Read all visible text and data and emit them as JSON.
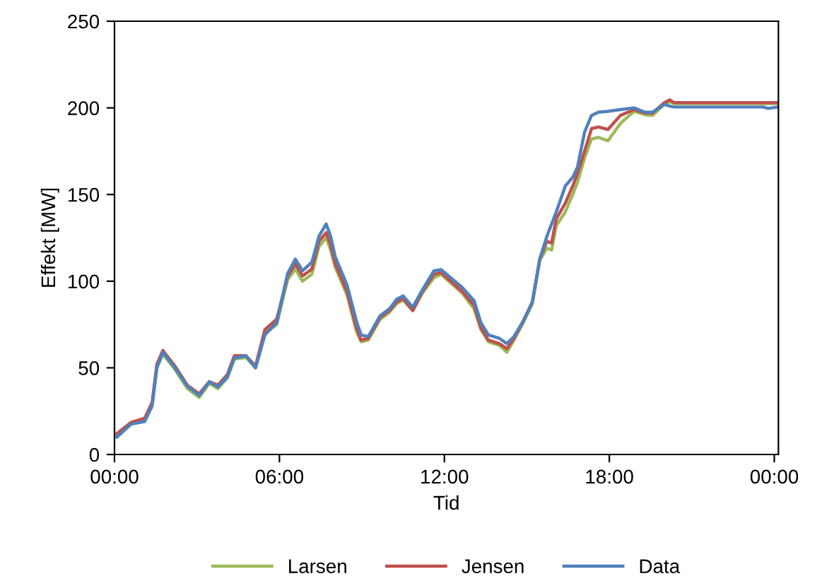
{
  "chart_data": {
    "type": "line",
    "xlabel": "Tid",
    "ylabel": "Effekt [MW]",
    "x": [
      0.09,
      0.6,
      1.1,
      1.37,
      1.54,
      1.76,
      2.2,
      2.65,
      3.08,
      3.45,
      3.76,
      4.1,
      4.36,
      4.78,
      5.13,
      5.47,
      5.9,
      6.3,
      6.58,
      6.84,
      7.18,
      7.44,
      7.7,
      7.86,
      8.03,
      8.46,
      8.8,
      8.97,
      9.23,
      9.66,
      10.0,
      10.26,
      10.5,
      10.85,
      11.2,
      11.62,
      11.88,
      12.65,
      13.08,
      13.33,
      13.6,
      14.0,
      14.27,
      14.53,
      14.87,
      15.2,
      15.47,
      15.73,
      15.9,
      16.07,
      16.4,
      16.67,
      16.84,
      17.1,
      17.35,
      17.6,
      17.95,
      18.4,
      18.9,
      19.3,
      19.57,
      20.0,
      20.2,
      20.35,
      21.2,
      23.6,
      23.76,
      24.14
    ],
    "series": [
      {
        "name": "Larsen",
        "color": "#9bbb59",
        "values": [
          11,
          18,
          20,
          29,
          50,
          58,
          49,
          38,
          33,
          41,
          38,
          44,
          55,
          56,
          50,
          70,
          75,
          101,
          107,
          100,
          104,
          120,
          125,
          118,
          108,
          92,
          71,
          65,
          66,
          78,
          82,
          87,
          89,
          83,
          93,
          102,
          104,
          93,
          84,
          72,
          65,
          63,
          59,
          66,
          76,
          87,
          112,
          119,
          118,
          132,
          140,
          150,
          157,
          171,
          182,
          183,
          181,
          191,
          198,
          196,
          195.6,
          202,
          203.5,
          202.5,
          202.5,
          202.5,
          202.5,
          202.5
        ]
      },
      {
        "name": "Jensen",
        "color": "#c0504d",
        "values": [
          12,
          18.5,
          21,
          30,
          52,
          60,
          51,
          40,
          35,
          42,
          40,
          46,
          57,
          57,
          51,
          72,
          78,
          103,
          110,
          103,
          107,
          123,
          128,
          121,
          110,
          94,
          73,
          66,
          67,
          79,
          83,
          88,
          90,
          83,
          94,
          104,
          105,
          94,
          86,
          73,
          66,
          64,
          61,
          67,
          77,
          88,
          113,
          123,
          122,
          136,
          145,
          155,
          162,
          175,
          188,
          189,
          187.5,
          195.6,
          199,
          197,
          197,
          203,
          204.6,
          203,
          203,
          203,
          203,
          203
        ]
      },
      {
        "name": "Data",
        "color": "#4f81bd",
        "values": [
          10,
          17.5,
          19,
          28,
          50,
          59,
          50,
          39.5,
          34,
          42,
          39,
          44.7,
          55.6,
          57,
          50,
          69,
          76,
          104.5,
          112.7,
          106,
          111,
          126,
          133,
          126,
          114,
          97.7,
          77,
          69,
          68,
          80,
          84,
          89.5,
          91.5,
          85,
          95,
          106,
          106.7,
          96.4,
          88.7,
          76,
          69,
          67,
          64,
          68,
          77,
          88,
          112.7,
          126,
          133,
          140,
          155,
          160,
          165.7,
          186,
          195.6,
          197.5,
          198,
          199,
          200,
          197.5,
          197.5,
          202,
          201,
          200.5,
          200.5,
          200.5,
          199.7,
          200.5
        ]
      }
    ],
    "xlim": [
      0,
      24.15
    ],
    "ylim": [
      0,
      250
    ],
    "xticks": [
      {
        "value": 0,
        "label": "00:00"
      },
      {
        "value": 6,
        "label": "06:00"
      },
      {
        "value": 12,
        "label": "12:00"
      },
      {
        "value": 18,
        "label": "18:00"
      },
      {
        "value": 24,
        "label": "00:00"
      }
    ],
    "yticks": [
      0,
      50,
      100,
      150,
      200,
      250
    ],
    "legend": "bottom",
    "grid": false,
    "marker": "none",
    "line_style": "solid"
  }
}
